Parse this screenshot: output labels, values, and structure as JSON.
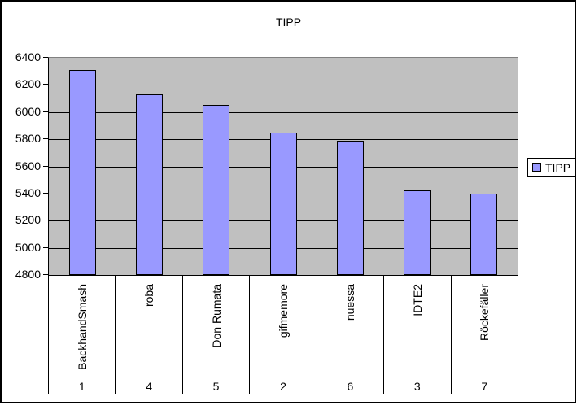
{
  "chart_data": {
    "type": "bar",
    "title": "TIPP",
    "legend": {
      "label": "TIPP",
      "position": "right"
    },
    "categories": [
      {
        "name": "BackhandSmash",
        "rank": "1"
      },
      {
        "name": "roba",
        "rank": "4"
      },
      {
        "name": "Don Rumata",
        "rank": "5"
      },
      {
        "name": "gifmemore",
        "rank": "2"
      },
      {
        "name": "nuessa",
        "rank": "6"
      },
      {
        "name": "IDTE2",
        "rank": "3"
      },
      {
        "name": "Röckefäller",
        "rank": "7"
      }
    ],
    "series": [
      {
        "name": "TIPP",
        "values": [
          6310,
          6130,
          6050,
          5850,
          5790,
          5425,
          5400
        ]
      }
    ],
    "ylim": [
      4800,
      6400
    ],
    "ytick_step": 200,
    "yticks": [
      "6400",
      "6200",
      "6000",
      "5800",
      "5600",
      "5400",
      "5200",
      "5000",
      "4800"
    ],
    "grid": true,
    "xlabel": "",
    "ylabel": "",
    "colors": {
      "bar_fill": "#9999FF",
      "bar_border": "#000000",
      "plot_bg": "#C0C0C0",
      "gridline": "#000000",
      "chart_bg": "#FFFFFF",
      "plot_border_shadow": "#808080",
      "text": "#000000"
    }
  }
}
